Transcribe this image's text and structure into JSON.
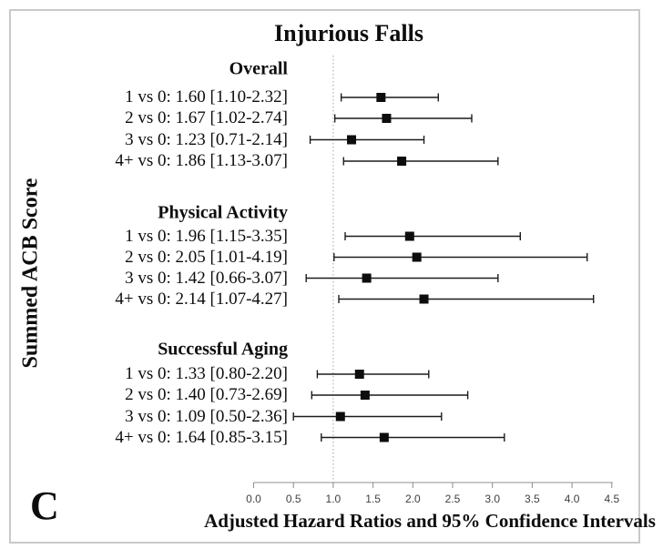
{
  "figure": {
    "title": "Injurious Falls",
    "panel_label": "C",
    "y_axis_label": "Summed ACB Score",
    "x_axis_label": "Adjusted Hazard Ratios and 95% Confidence Intervals"
  },
  "chart_data": {
    "type": "forest",
    "title": "Injurious Falls",
    "xlabel": "Adjusted Hazard Ratios and 95% Confidence Intervals",
    "ylabel": "Summed ACB Score",
    "xlim": [
      0.0,
      4.5
    ],
    "x_ticks": [
      0.0,
      0.5,
      1.0,
      1.5,
      2.0,
      2.5,
      3.0,
      3.5,
      4.0,
      4.5
    ],
    "x_tick_labels": [
      "0.0",
      "0.5",
      "1.0",
      "1.5",
      "2.0",
      "2.5",
      "3.0",
      "3.5",
      "4.0",
      "4.5"
    ],
    "reference_line_x": 1.0,
    "marker": "black-square",
    "groups": [
      {
        "label": "Overall",
        "rows": [
          {
            "label": "1 vs 0: 1.60 [1.10-2.32]",
            "comparison": "1 vs 0",
            "hr": 1.6,
            "ci_low": 1.1,
            "ci_high": 2.32
          },
          {
            "label": "2 vs 0: 1.67 [1.02-2.74]",
            "comparison": "2 vs 0",
            "hr": 1.67,
            "ci_low": 1.02,
            "ci_high": 2.74
          },
          {
            "label": "3 vs 0: 1.23 [0.71-2.14]",
            "comparison": "3 vs 0",
            "hr": 1.23,
            "ci_low": 0.71,
            "ci_high": 2.14
          },
          {
            "label": "4+ vs 0: 1.86 [1.13-3.07]",
            "comparison": "4+ vs 0",
            "hr": 1.86,
            "ci_low": 1.13,
            "ci_high": 3.07
          }
        ]
      },
      {
        "label": "Physical Activity",
        "rows": [
          {
            "label": "1 vs 0: 1.96 [1.15-3.35]",
            "comparison": "1 vs 0",
            "hr": 1.96,
            "ci_low": 1.15,
            "ci_high": 3.35
          },
          {
            "label": "2 vs 0: 2.05 [1.01-4.19]",
            "comparison": "2 vs 0",
            "hr": 2.05,
            "ci_low": 1.01,
            "ci_high": 4.19
          },
          {
            "label": "3 vs 0: 1.42 [0.66-3.07]",
            "comparison": "3 vs 0",
            "hr": 1.42,
            "ci_low": 0.66,
            "ci_high": 3.07
          },
          {
            "label": "4+ vs 0: 2.14 [1.07-4.27]",
            "comparison": "4+ vs 0",
            "hr": 2.14,
            "ci_low": 1.07,
            "ci_high": 4.27
          }
        ]
      },
      {
        "label": "Successful Aging",
        "rows": [
          {
            "label": "1 vs 0: 1.33 [0.80-2.20]",
            "comparison": "1 vs 0",
            "hr": 1.33,
            "ci_low": 0.8,
            "ci_high": 2.2
          },
          {
            "label": "2 vs 0: 1.40 [0.73-2.69]",
            "comparison": "2 vs 0",
            "hr": 1.4,
            "ci_low": 0.73,
            "ci_high": 2.69
          },
          {
            "label": "3 vs 0: 1.09 [0.50-2.36]",
            "comparison": "3 vs 0",
            "hr": 1.09,
            "ci_low": 0.5,
            "ci_high": 2.36
          },
          {
            "label": "4+ vs 0: 1.64 [0.85-3.15]",
            "comparison": "4+ vs 0",
            "hr": 1.64,
            "ci_low": 0.85,
            "ci_high": 3.15
          }
        ]
      }
    ]
  }
}
